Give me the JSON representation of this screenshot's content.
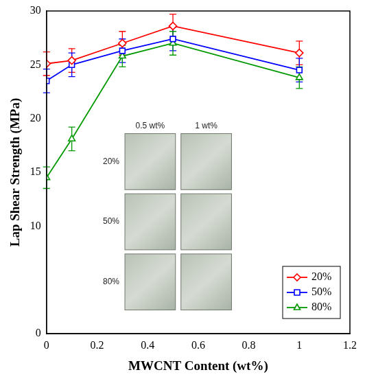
{
  "chart_data": {
    "type": "line",
    "xlabel": "MWCNT Content (wt%)",
    "ylabel": "Lap Shear Strength (MPa)",
    "x": [
      0,
      0.1,
      0.3,
      0.5,
      1
    ],
    "series": [
      {
        "name": "20%",
        "color": "#ff0000",
        "marker": "diamond",
        "values": [
          25.1,
          25.4,
          27.0,
          28.6,
          26.1
        ],
        "errors": [
          1.1,
          1.1,
          1.1,
          1.1,
          1.1
        ]
      },
      {
        "name": "50%",
        "color": "#0000ff",
        "marker": "square",
        "values": [
          23.5,
          25.0,
          26.3,
          27.4,
          24.5
        ],
        "errors": [
          1.1,
          1.1,
          1.1,
          1.1,
          1.1
        ]
      },
      {
        "name": "80%",
        "color": "#009900",
        "marker": "triangle",
        "values": [
          14.5,
          18.1,
          25.8,
          27.0,
          23.8
        ],
        "errors": [
          1.0,
          1.1,
          1.0,
          1.1,
          1.0
        ]
      }
    ],
    "xlim": [
      0,
      1.2
    ],
    "xticks": [
      0,
      0.2,
      0.4,
      0.6,
      0.8,
      1,
      1.2
    ],
    "ylim": [
      0,
      30
    ],
    "yticks": [
      0,
      10,
      15,
      20,
      25,
      30
    ],
    "grid": false,
    "legend": "lower right",
    "annotations": {
      "inset_columns": [
        "0.5 wt%",
        "1 wt%"
      ],
      "inset_rows": [
        "20%",
        "50%",
        "80%"
      ]
    }
  }
}
